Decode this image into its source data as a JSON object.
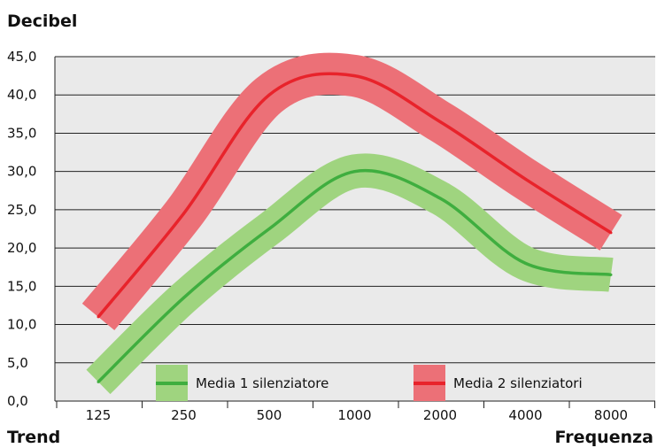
{
  "chart_data": {
    "type": "line",
    "categories": [
      "125",
      "250",
      "500",
      "1000",
      "2000",
      "4000",
      "8000"
    ],
    "ylabel": "Decibel",
    "xlabel": "Frequenza",
    "footer_label": "Trend",
    "y_ticks": [
      "0,0",
      "5,0",
      "10,0",
      "15,0",
      "20,0",
      "25,0",
      "30,0",
      "35,0",
      "40,0",
      "45,0"
    ],
    "ylim": [
      0,
      45
    ],
    "grid": true,
    "legend_position": "bottom-inside",
    "series": [
      {
        "name": "Media 1 silenziatore",
        "values": [
          2.5,
          13.5,
          22.5,
          30.0,
          26.5,
          18.0,
          16.5
        ],
        "line_color": "#3fae3f",
        "band_color": "#9fd47f",
        "band_halfwidth_db": 2.0
      },
      {
        "name": "Media 2 silenziatori",
        "values": [
          11.0,
          24.5,
          40.0,
          42.5,
          36.5,
          29.0,
          22.0
        ],
        "line_color": "#e8232b",
        "band_color": "#ec7077",
        "band_halfwidth_db": 2.5
      }
    ],
    "colors": {
      "plot_background": "#eaeaea",
      "gridline": "#222222"
    }
  }
}
